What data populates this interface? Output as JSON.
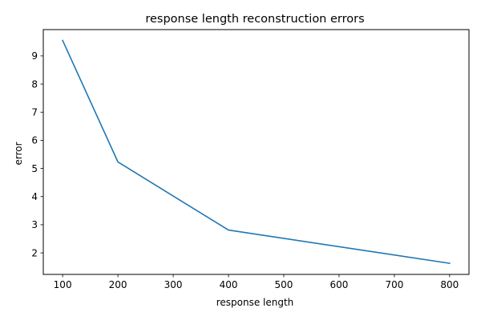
{
  "chart_data": {
    "type": "line",
    "title": "response length reconstruction errors",
    "xlabel": "response length",
    "ylabel": "error",
    "xlim": [
      65,
      835
    ],
    "ylim": [
      1.235,
      9.935
    ],
    "xticks": [
      100,
      200,
      300,
      400,
      500,
      600,
      700,
      800
    ],
    "yticks": [
      2,
      3,
      4,
      5,
      6,
      7,
      8,
      9
    ],
    "grid": false,
    "series": [
      {
        "x": [
          100,
          200,
          400,
          800
        ],
        "y": [
          9.55,
          5.23,
          2.81,
          1.63
        ],
        "color": "#1f77b4"
      }
    ]
  }
}
